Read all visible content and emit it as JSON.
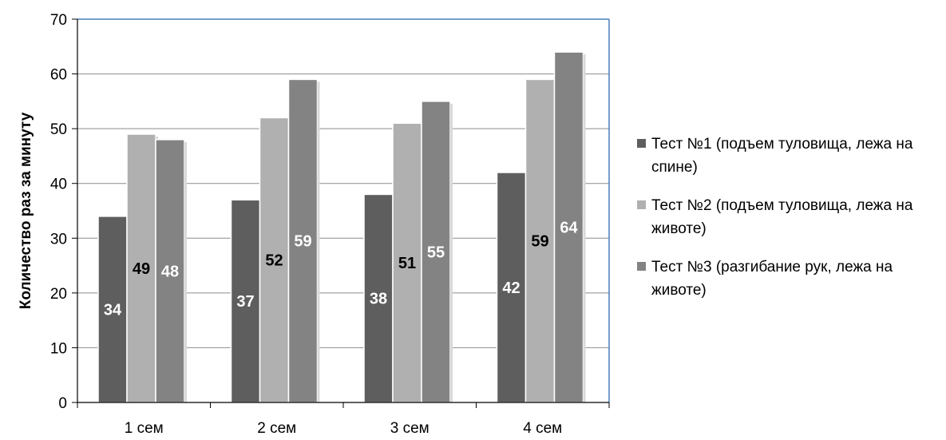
{
  "chart_data": {
    "type": "bar",
    "title": "",
    "xlabel": "",
    "ylabel": "Количество раз за минуту",
    "ylim": [
      0,
      70
    ],
    "yticks": [
      0,
      10,
      20,
      30,
      40,
      50,
      60,
      70
    ],
    "grid": true,
    "legend_position": "right",
    "categories": [
      "1 сем",
      "2 сем",
      "3 сем",
      "4 сем"
    ],
    "series": [
      {
        "name": "Тест №1 (подъем туловища, лежа на спине)",
        "values": [
          34,
          37,
          38,
          42
        ],
        "color": "#5e5e5e",
        "label_color": "#ffffff"
      },
      {
        "name": "Тест №2 (подъем туловища, лежа на животе)",
        "values": [
          49,
          52,
          51,
          59
        ],
        "color": "#b0b0b0",
        "label_color": "#000000"
      },
      {
        "name": "Тест №3 (разгибание рук, лежа на животе)",
        "values": [
          48,
          59,
          55,
          64
        ],
        "color": "#838383",
        "label_color": "#ffffff"
      }
    ],
    "plot_border_color": "#4a7ebb",
    "gridline_color": "#8c8c8c"
  }
}
